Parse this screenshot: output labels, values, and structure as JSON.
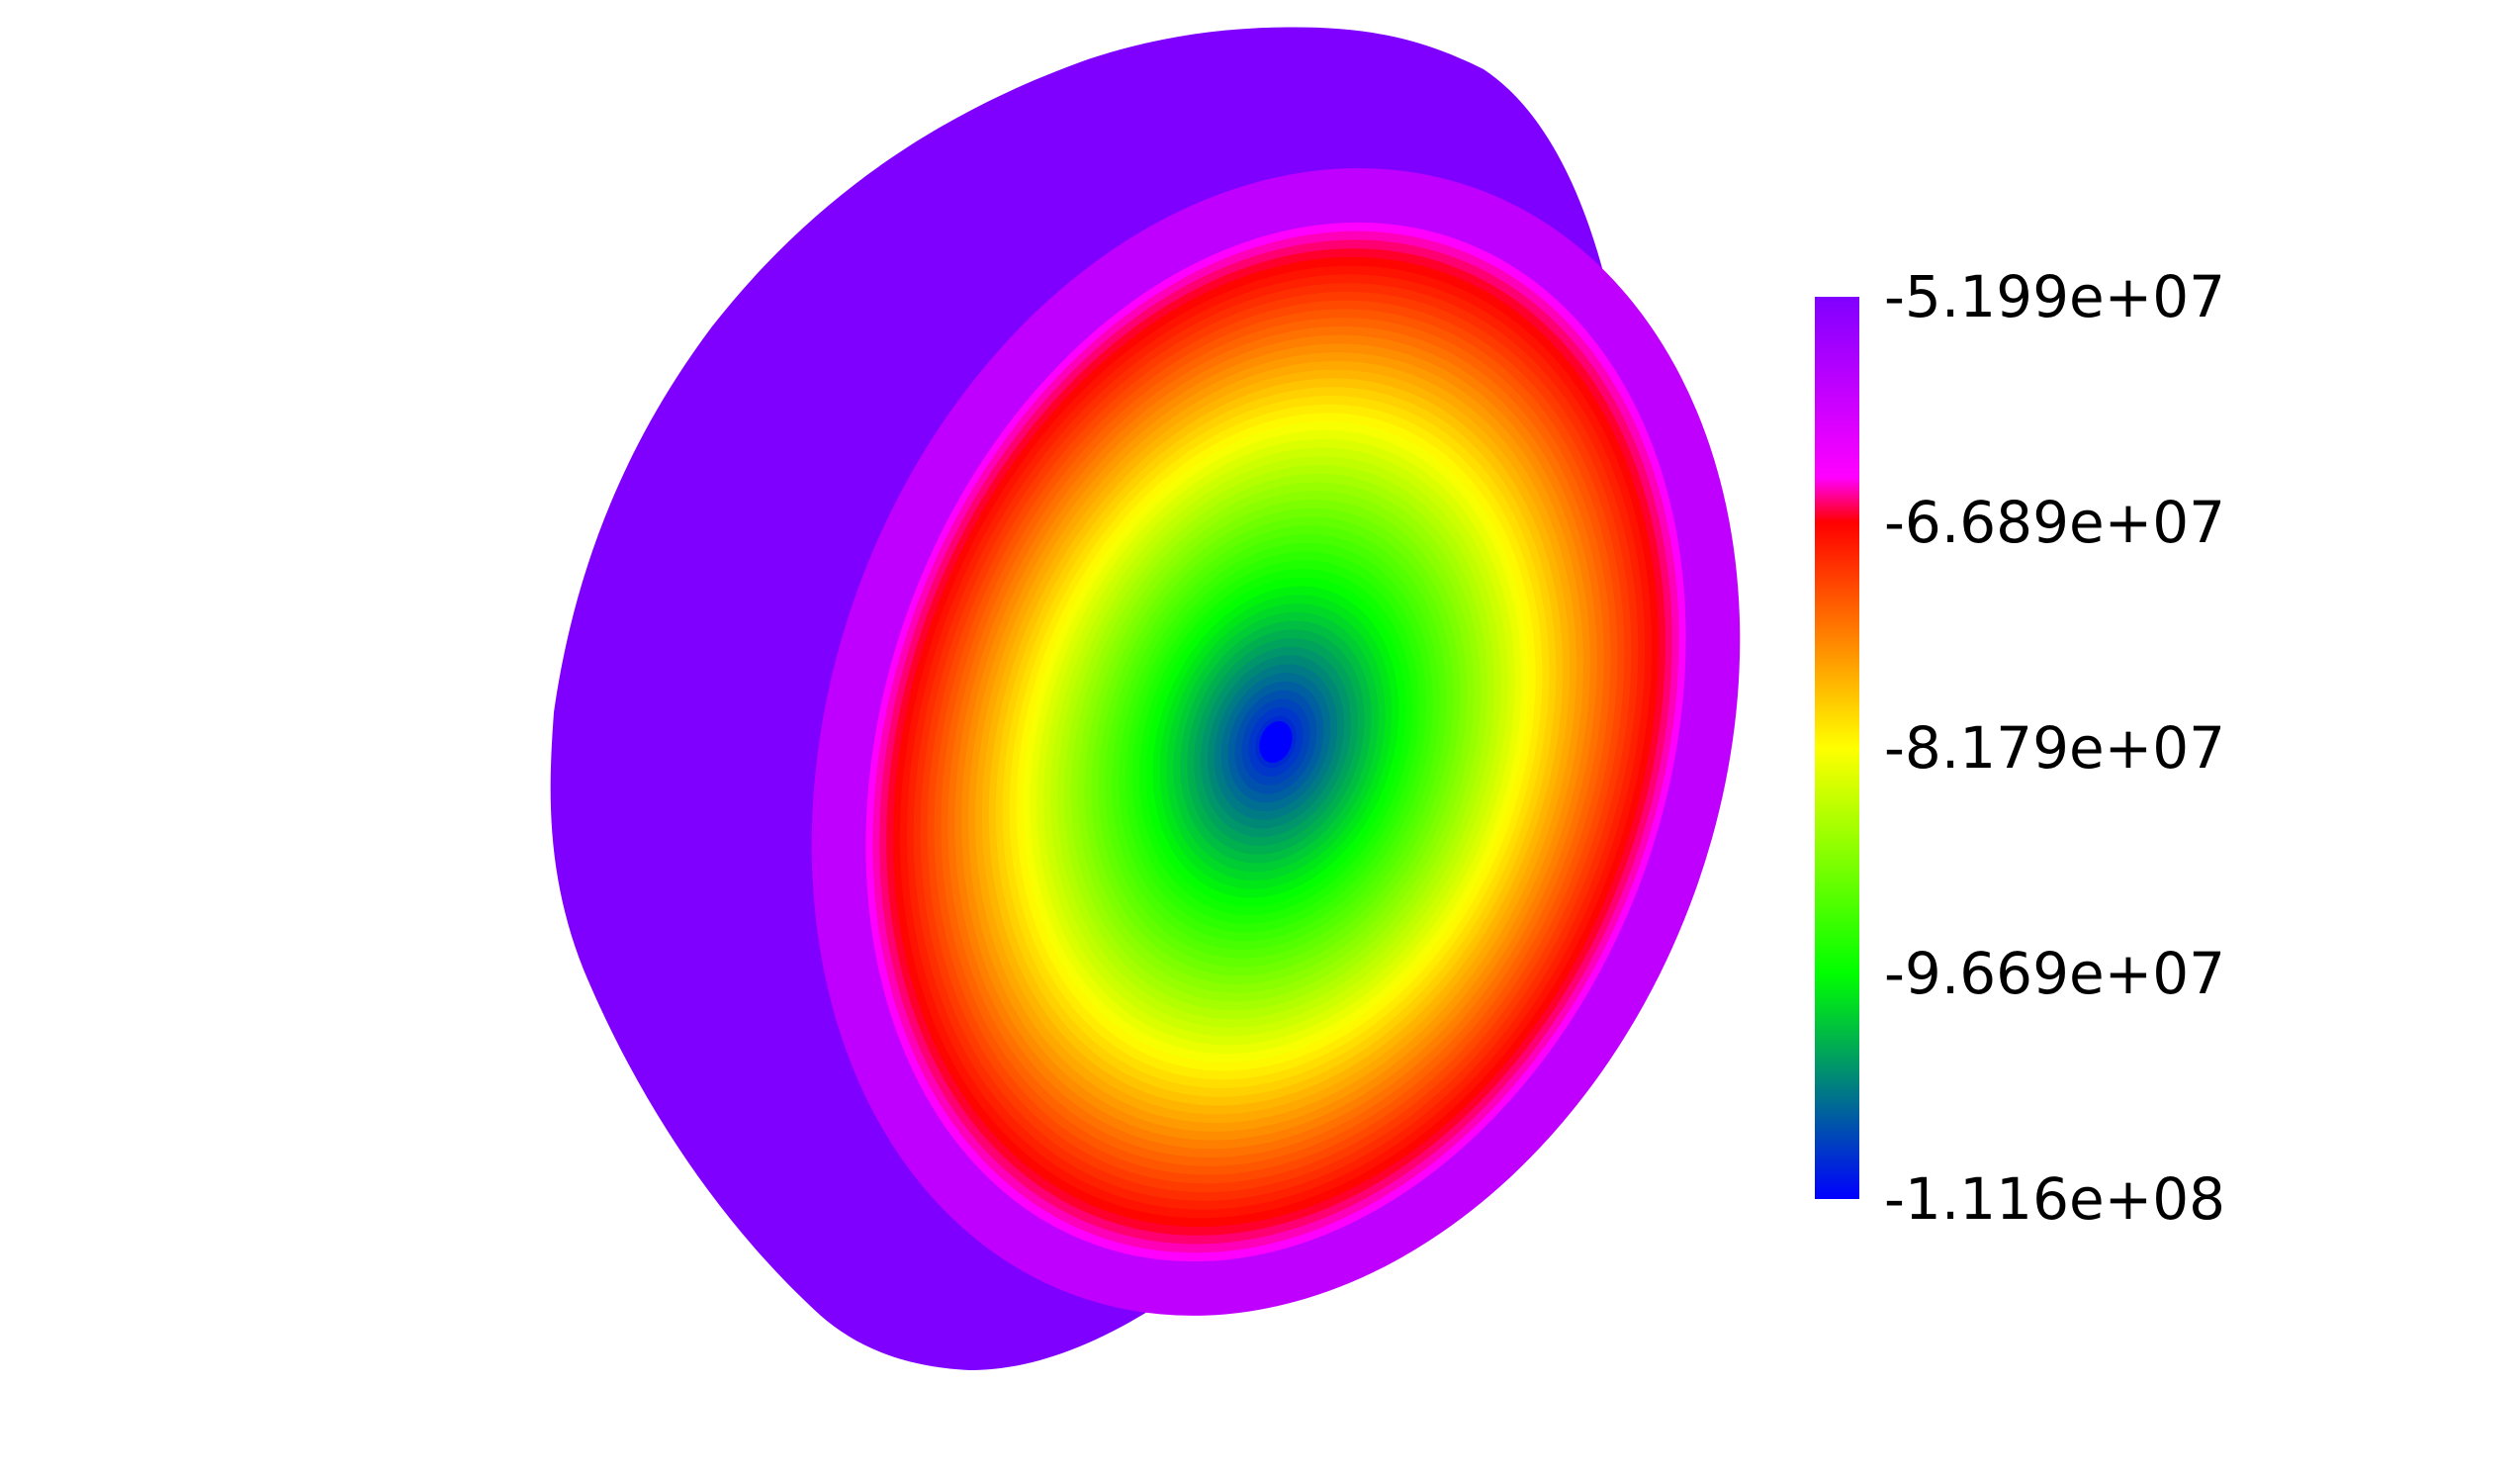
{
  "chart_data": {
    "type": "heatmap",
    "colorbar": {
      "ticks": [
        "-5.199e+07",
        "-6.689e+07",
        "-8.179e+07",
        "-9.669e+07",
        "-1.116e+08"
      ],
      "values": [
        -51990000,
        -66890000,
        -81790000,
        -96690000,
        -111600000
      ],
      "range": [
        -111600000,
        -51990000
      ],
      "colormap": [
        {
          "value": -111600000,
          "color": "#0000ff"
        },
        {
          "value": -96690000,
          "color": "#00ff00"
        },
        {
          "value": -81790000,
          "color": "#ffff00"
        },
        {
          "value": -66890000,
          "color": "#ff0000"
        },
        {
          "value": -64000000,
          "color": "#ff00ff"
        },
        {
          "value": -51990000,
          "color": "#8000ff"
        }
      ],
      "placement": "right"
    },
    "field": {
      "minimum_value": -111600000,
      "outer_value": -51990000,
      "contour_levels": [
        -111600000,
        -106000000,
        -101000000,
        -96690000,
        -89000000,
        -81790000,
        -74000000,
        -66890000,
        -64000000,
        -51990000
      ]
    }
  }
}
